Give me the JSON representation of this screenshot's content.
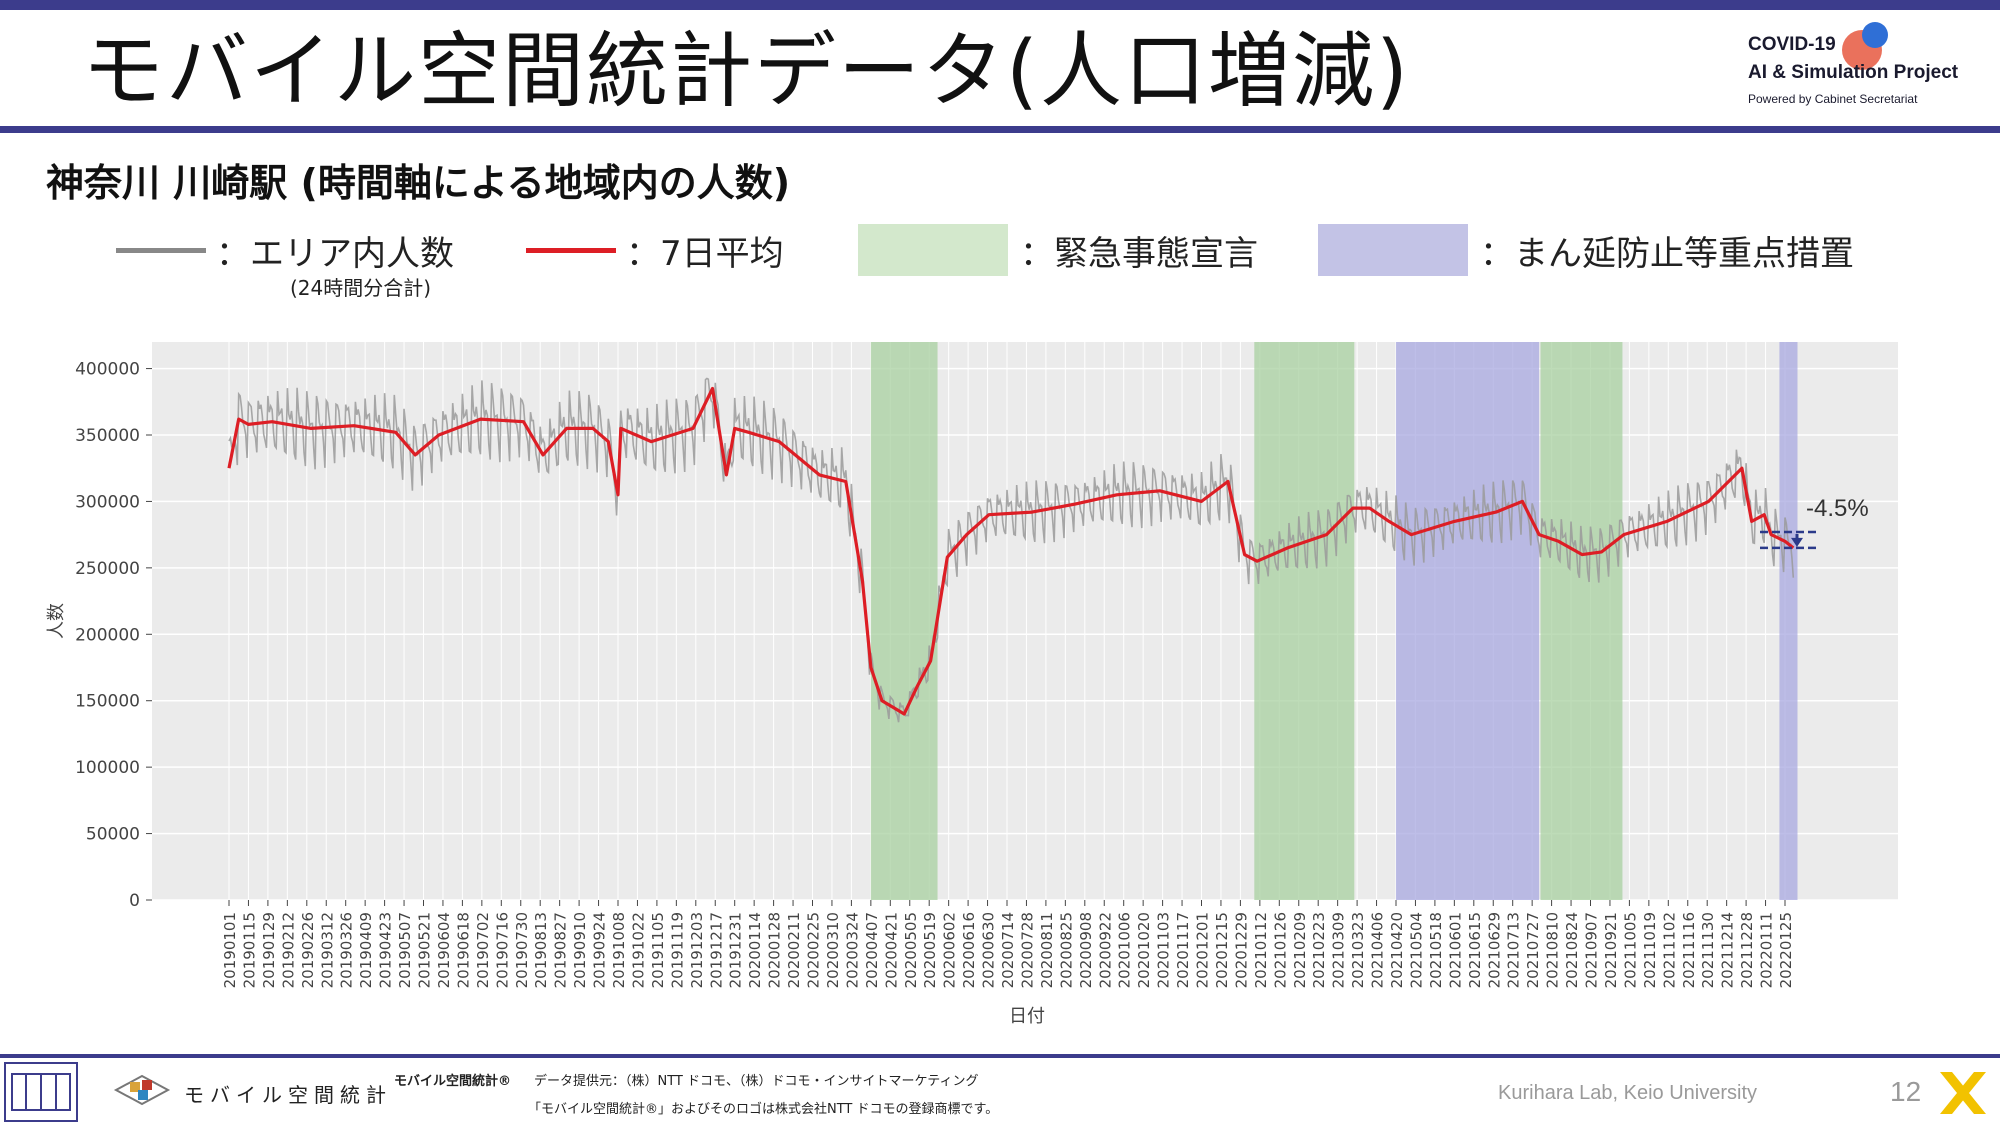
{
  "header": {
    "title": "モバイル空間統計データ(人口増減)",
    "logo": {
      "line1": "COVID-19",
      "line2": "AI & Simulation Project",
      "line3": "Powered by Cabinet Secretariat"
    }
  },
  "subtitle": "神奈川 川崎駅 (時間軸による地域内の人数)",
  "legend": {
    "items": [
      {
        "kind": "line",
        "label": "：エリア内人数",
        "color": "#888888"
      },
      {
        "kind": "line",
        "label": "：7日平均",
        "color": "#dd1e25"
      },
      {
        "kind": "rect",
        "label": "：緊急事態宣言",
        "color": "#d3e8cc"
      },
      {
        "kind": "rect",
        "label": "：まん延防止等重点措置",
        "color": "#c3c3e6"
      }
    ],
    "note": "(24時間分合計)"
  },
  "chart_data": {
    "type": "line",
    "xlabel": "日付",
    "ylabel": "人数",
    "ylim": [
      0,
      420000
    ],
    "yticks": [
      0,
      50000,
      100000,
      150000,
      200000,
      250000,
      300000,
      350000,
      400000
    ],
    "x_tick_labels": [
      "20190101",
      "20190115",
      "20190129",
      "20190212",
      "20190226",
      "20190312",
      "20190326",
      "20190409",
      "20190423",
      "20190507",
      "20190521",
      "20190604",
      "20190618",
      "20190702",
      "20190716",
      "20190730",
      "20190813",
      "20190827",
      "20190910",
      "20190924",
      "20191008",
      "20191022",
      "20191105",
      "20191119",
      "20191203",
      "20191217",
      "20191231",
      "20200114",
      "20200128",
      "20200211",
      "20200225",
      "20200310",
      "20200324",
      "20200407",
      "20200421",
      "20200505",
      "20200519",
      "20200602",
      "20200616",
      "20200630",
      "20200714",
      "20200728",
      "20200811",
      "20200825",
      "20200908",
      "20200922",
      "20201006",
      "20201020",
      "20201103",
      "20201117",
      "20201201",
      "20201215",
      "20201229",
      "20210112",
      "20210126",
      "20210209",
      "20210223",
      "20210309",
      "20210323",
      "20210406",
      "20210420",
      "20210504",
      "20210518",
      "20210601",
      "20210615",
      "20210629",
      "20210713",
      "20210727",
      "20210810",
      "20210824",
      "20210907",
      "20210921",
      "20211005",
      "20211019",
      "20211102",
      "20211116",
      "20211130",
      "20211214",
      "20211228",
      "20220111",
      "20220125"
    ],
    "shaded_periods": [
      {
        "type": "緊急事態宣言",
        "start": "20200407",
        "end": "20200525"
      },
      {
        "type": "緊急事態宣言",
        "start": "20210108",
        "end": "20210321"
      },
      {
        "type": "まん延防止等重点措置",
        "start": "20210420",
        "end": "20210801"
      },
      {
        "type": "緊急事態宣言",
        "start": "20210802",
        "end": "20210930"
      },
      {
        "type": "まん延防止等重点措置",
        "start": "20220121",
        "end": "20220203"
      }
    ],
    "series": [
      {
        "name": "7日平均",
        "color": "#dd1e25",
        "x": [
          "20190101",
          "20190108",
          "20190115",
          "20190201",
          "20190301",
          "20190401",
          "20190501",
          "20190515",
          "20190601",
          "20190701",
          "20190801",
          "20190815",
          "20190901",
          "20190920",
          "20191001",
          "20191008",
          "20191010",
          "20191101",
          "20191201",
          "20191215",
          "20191225",
          "20191231",
          "20200110",
          "20200201",
          "20200301",
          "20200320",
          "20200401",
          "20200407",
          "20200415",
          "20200501",
          "20200510",
          "20200520",
          "20200601",
          "20200615",
          "20200701",
          "20200801",
          "20200901",
          "20201001",
          "20201101",
          "20201201",
          "20201220",
          "20210101",
          "20210110",
          "20210201",
          "20210301",
          "20210320",
          "20210401",
          "20210415",
          "20210501",
          "20210601",
          "20210701",
          "20210720",
          "20210801",
          "20210815",
          "20210901",
          "20210915",
          "20211001",
          "20211101",
          "20211201",
          "20211225",
          "20220101",
          "20220110",
          "20220115",
          "20220125",
          "20220131"
        ],
        "y": [
          325000,
          362000,
          358000,
          360000,
          355000,
          357000,
          352000,
          335000,
          350000,
          362000,
          360000,
          335000,
          355000,
          355000,
          345000,
          305000,
          355000,
          345000,
          355000,
          385000,
          320000,
          355000,
          352000,
          345000,
          320000,
          315000,
          240000,
          175000,
          150000,
          140000,
          160000,
          180000,
          258000,
          275000,
          290000,
          292000,
          298000,
          305000,
          308000,
          300000,
          315000,
          260000,
          255000,
          265000,
          275000,
          295000,
          295000,
          285000,
          275000,
          285000,
          292000,
          300000,
          275000,
          270000,
          260000,
          262000,
          275000,
          285000,
          300000,
          325000,
          285000,
          290000,
          275000,
          270000,
          265000
        ]
      }
    ],
    "annotations": [
      {
        "text": "-4.5%",
        "from_value": 277000,
        "to_value": 265000
      }
    ]
  },
  "footer": {
    "brand_logo_label": "モバイル空間統計",
    "brand_mark": "モバイル空間統計®",
    "provider": "データ提供元：（株）NTT ドコモ、（株）ドコモ・インサイトマーケティング",
    "trademark": "「モバイル空間統計®」およびそのロゴは株式会社NTT ドコモの登録商標です。",
    "lab": "Kurihara Lab, Keio University",
    "page_number": "12"
  }
}
